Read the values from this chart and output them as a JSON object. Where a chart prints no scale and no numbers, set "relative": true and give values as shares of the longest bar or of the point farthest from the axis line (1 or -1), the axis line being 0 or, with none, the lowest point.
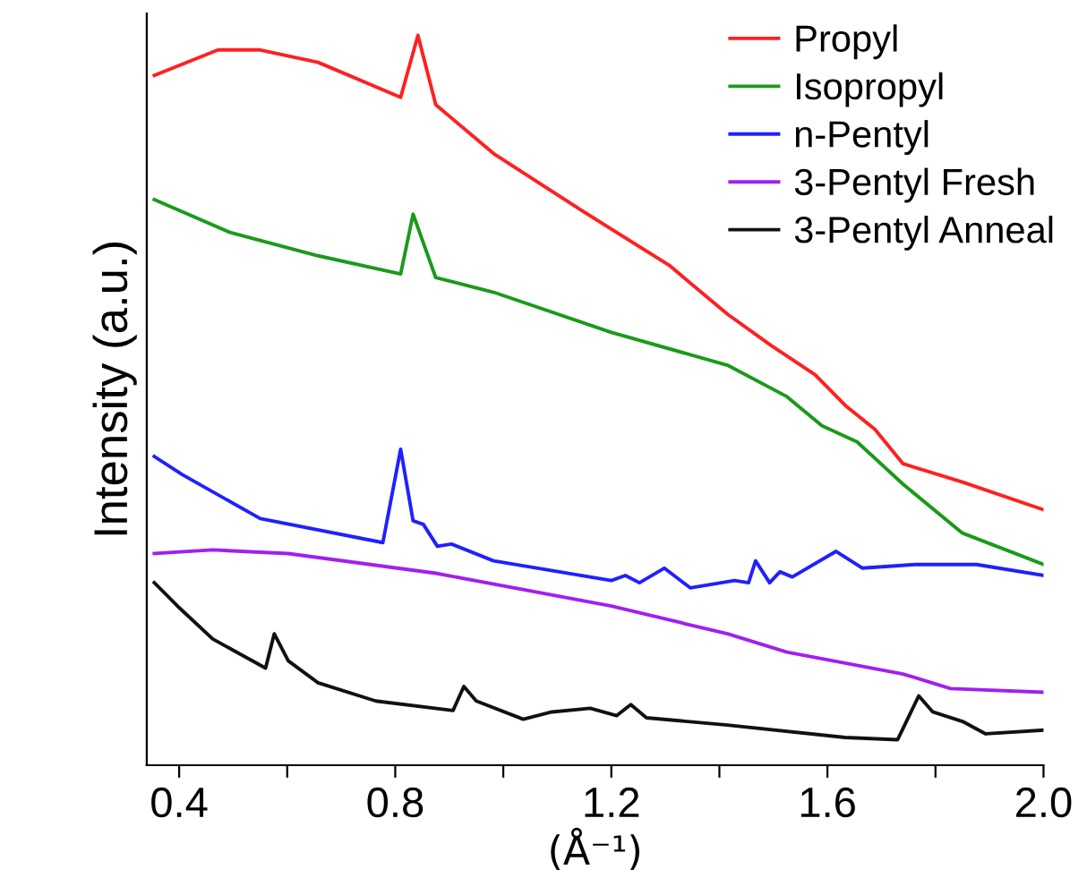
{
  "chart_data": {
    "type": "line",
    "relative": true,
    "xlabel": "(Å⁻¹)",
    "ylabel": "Intensity (a.u.)",
    "xlim": [
      0.34,
      2.0
    ],
    "xticks": [
      0.4,
      {
        "value": 0.6,
        "label": null
      },
      0.8,
      {
        "value": 1.0,
        "label": null
      },
      1.2,
      {
        "value": 1.4,
        "label": null
      },
      1.6,
      {
        "value": 1.8,
        "label": null
      },
      {
        "value": 2.0,
        "label": "2.0"
      }
    ],
    "legend": "top right",
    "grid": false,
    "series": [
      {
        "name": "Propyl",
        "color": "#ff2020",
        "x": [
          0.354,
          0.472,
          0.55,
          0.657,
          0.81,
          0.842,
          0.875,
          0.982,
          1.145,
          1.307,
          1.415,
          1.496,
          1.577,
          1.633,
          1.688,
          1.74,
          1.85,
          2.0
        ],
        "values": [
          0.945,
          0.98,
          0.98,
          0.963,
          0.915,
          1.0,
          0.905,
          0.838,
          0.76,
          0.685,
          0.618,
          0.575,
          0.535,
          0.493,
          0.46,
          0.413,
          0.388,
          0.35
        ]
      },
      {
        "name": "Isopropyl",
        "color": "#1a9a1a",
        "x": [
          0.354,
          0.494,
          0.657,
          0.81,
          0.833,
          0.875,
          0.982,
          1.2,
          1.415,
          1.525,
          1.59,
          1.655,
          1.74,
          1.85,
          2.0
        ],
        "values": [
          0.775,
          0.73,
          0.698,
          0.673,
          0.755,
          0.668,
          0.648,
          0.593,
          0.548,
          0.505,
          0.465,
          0.443,
          0.385,
          0.318,
          0.275
        ]
      },
      {
        "name": "n-Pentyl",
        "color": "#2020ff",
        "x": [
          0.354,
          0.406,
          0.55,
          0.777,
          0.81,
          0.833,
          0.852,
          0.878,
          0.904,
          0.982,
          1.2,
          1.226,
          1.252,
          1.298,
          1.346,
          1.428,
          1.454,
          1.467,
          1.493,
          1.512,
          1.535,
          1.616,
          1.665,
          1.763,
          1.876,
          2.0
        ],
        "values": [
          0.423,
          0.398,
          0.338,
          0.305,
          0.433,
          0.335,
          0.33,
          0.3,
          0.303,
          0.28,
          0.253,
          0.26,
          0.25,
          0.27,
          0.243,
          0.253,
          0.25,
          0.28,
          0.25,
          0.265,
          0.258,
          0.293,
          0.27,
          0.275,
          0.275,
          0.26
        ]
      },
      {
        "name": "3-Pentyl Fresh",
        "color": "#a020f0",
        "x": [
          0.354,
          0.462,
          0.602,
          0.875,
          1.2,
          1.415,
          1.525,
          1.74,
          1.828,
          2.0
        ],
        "values": [
          0.29,
          0.295,
          0.29,
          0.263,
          0.218,
          0.18,
          0.155,
          0.125,
          0.105,
          0.1
        ]
      },
      {
        "name": "3-Pentyl Anneal",
        "color": "#111111",
        "x": [
          0.354,
          0.397,
          0.462,
          0.56,
          0.576,
          0.602,
          0.657,
          0.764,
          0.907,
          0.927,
          0.95,
          1.037,
          1.09,
          1.161,
          1.21,
          1.236,
          1.265,
          1.415,
          1.633,
          1.73,
          1.769,
          1.795,
          1.85,
          1.893,
          2.0
        ],
        "values": [
          0.25,
          0.218,
          0.173,
          0.133,
          0.18,
          0.143,
          0.113,
          0.088,
          0.075,
          0.108,
          0.088,
          0.063,
          0.073,
          0.078,
          0.068,
          0.083,
          0.065,
          0.055,
          0.038,
          0.035,
          0.095,
          0.073,
          0.06,
          0.043,
          0.048
        ]
      }
    ]
  }
}
